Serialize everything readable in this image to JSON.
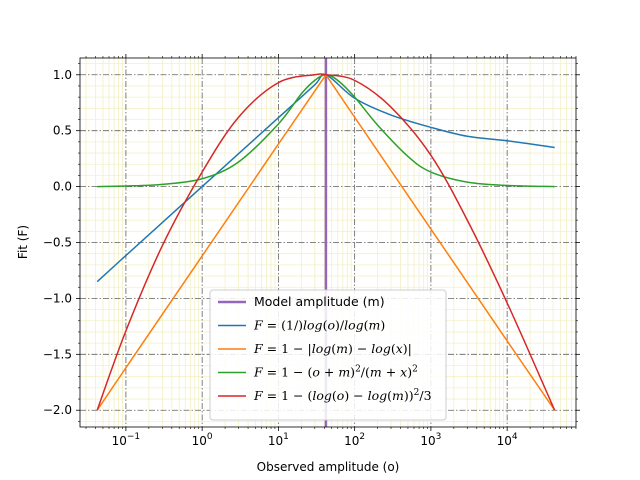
{
  "chart_data": {
    "type": "line",
    "xscale": "log",
    "xlim": [
      0.025,
      80000
    ],
    "ylim": [
      -2.15,
      1.15
    ],
    "xlabel": "Observed amplitude (o)",
    "ylabel": "Fit (F)",
    "title": "",
    "x_ticks": [
      0.1,
      1,
      10,
      100,
      1000,
      10000
    ],
    "x_tick_labels": [
      {
        "base": "10",
        "exp": "−1"
      },
      {
        "base": "10",
        "exp": "0"
      },
      {
        "base": "10",
        "exp": "1"
      },
      {
        "base": "10",
        "exp": "2"
      },
      {
        "base": "10",
        "exp": "3"
      },
      {
        "base": "10",
        "exp": "4"
      }
    ],
    "y_ticks": [
      -2.0,
      -1.5,
      -1.0,
      -0.5,
      0.0,
      0.5,
      1.0
    ],
    "y_tick_labels": [
      "−2.0",
      "−1.5",
      "−1.0",
      "−0.5",
      "0.0",
      "0.5",
      "1.0"
    ],
    "grid": true,
    "minor_grid": true,
    "legend_position": "bottom-center",
    "model_amplitude": {
      "name": "Model amplitude (m)",
      "x": 42,
      "color": "#9467bd"
    },
    "series": [
      {
        "name": "F = (1/)log(o)/log(m)",
        "color": "#1f77b4",
        "x": [
          0.042,
          0.1,
          0.3,
          1,
          3,
          10,
          30,
          42,
          100,
          300,
          1000,
          3000,
          10000,
          42000
        ],
        "y": [
          -0.85,
          -0.616,
          -0.322,
          0.0,
          0.294,
          0.616,
          0.91,
          1.0,
          0.79,
          0.64,
          0.53,
          0.45,
          0.41,
          0.35
        ]
      },
      {
        "name": "F = 1 − |log(m) − log(x)|",
        "color": "#ff7f0e",
        "x": [
          0.042,
          0.1,
          1,
          10,
          42,
          100,
          1000,
          10000,
          42000
        ],
        "y": [
          -2.0,
          -1.62,
          -0.62,
          0.38,
          1.0,
          0.62,
          -0.38,
          -1.38,
          -2.0
        ]
      },
      {
        "name": "F = 1 − (o + m)^2/(m + x)^2",
        "color": "#2ca02c",
        "x": [
          0.042,
          0.1,
          0.3,
          1,
          3,
          10,
          20,
          30,
          42,
          60,
          100,
          200,
          500,
          1000,
          3000,
          10000,
          42000
        ],
        "y": [
          0.0,
          0.005,
          0.02,
          0.07,
          0.22,
          0.56,
          0.83,
          0.95,
          1.0,
          0.95,
          0.8,
          0.55,
          0.27,
          0.13,
          0.04,
          0.01,
          0.0
        ]
      },
      {
        "name": "F = 1 − (log(o) − log(m))^2/3",
        "color": "#d62728",
        "x": [
          0.042,
          0.1,
          0.3,
          1,
          3,
          10,
          30,
          42,
          100,
          300,
          1000,
          3000,
          10000,
          42000
        ],
        "y": [
          -2.0,
          -1.29,
          -0.53,
          0.13,
          0.62,
          0.93,
          1.0,
          1.0,
          0.95,
          0.71,
          0.28,
          -0.3,
          -1.04,
          -2.0
        ]
      }
    ],
    "legend": {
      "model_label": "Model amplitude (m)",
      "entries": [
        {
          "lhs": "F",
          "rhs_parts": [
            {
              "t": "(1/)"
            },
            {
              "t": "log",
              "i": true
            },
            {
              "t": "("
            },
            {
              "t": "o",
              "i": true
            },
            {
              "t": ")/"
            },
            {
              "t": "log",
              "i": true
            },
            {
              "t": "("
            },
            {
              "t": "m",
              "i": true
            },
            {
              "t": ")"
            }
          ]
        },
        {
          "lhs": "F",
          "rhs_parts": [
            {
              "t": "1 − |"
            },
            {
              "t": "log",
              "i": true
            },
            {
              "t": "("
            },
            {
              "t": "m",
              "i": true
            },
            {
              "t": ") − "
            },
            {
              "t": "log",
              "i": true
            },
            {
              "t": "("
            },
            {
              "t": "x",
              "i": true
            },
            {
              "t": ")|"
            }
          ]
        },
        {
          "lhs": "F",
          "rhs_parts": [
            {
              "t": "1 − ("
            },
            {
              "t": "o",
              "i": true
            },
            {
              "t": " + "
            },
            {
              "t": "m",
              "i": true
            },
            {
              "t": ")"
            },
            {
              "t": "2",
              "sup": true
            },
            {
              "t": "/("
            },
            {
              "t": "m",
              "i": true
            },
            {
              "t": " + "
            },
            {
              "t": "x",
              "i": true
            },
            {
              "t": ")"
            },
            {
              "t": "2",
              "sup": true
            }
          ]
        },
        {
          "lhs": "F",
          "rhs_parts": [
            {
              "t": "1 − ("
            },
            {
              "t": "log",
              "i": true
            },
            {
              "t": "("
            },
            {
              "t": "o",
              "i": true
            },
            {
              "t": ") − "
            },
            {
              "t": "log",
              "i": true
            },
            {
              "t": "("
            },
            {
              "t": "m",
              "i": true
            },
            {
              "t": "))"
            },
            {
              "t": "2",
              "sup": true
            },
            {
              "t": "/3"
            }
          ]
        }
      ]
    }
  }
}
